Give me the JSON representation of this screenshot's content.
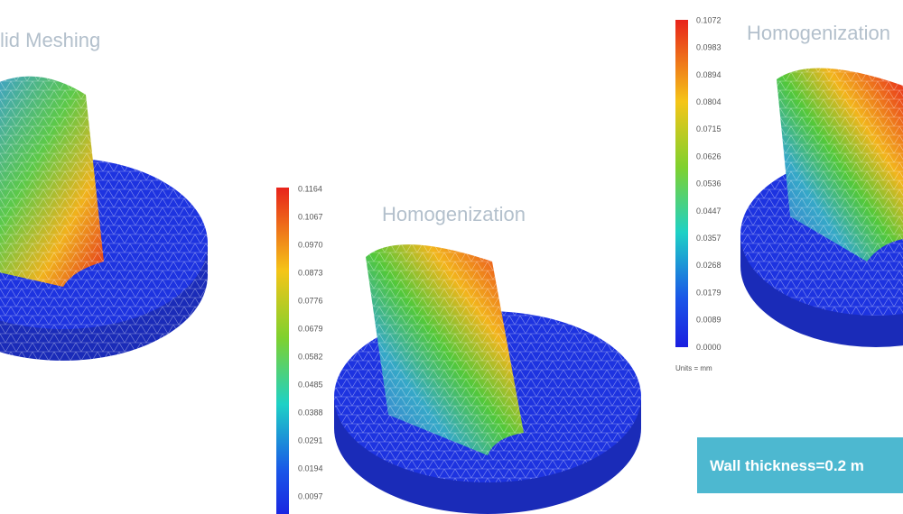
{
  "panels": [
    {
      "title": "lid Meshing"
    },
    {
      "title": "Homogenization",
      "colorbar": {
        "labels": [
          "0.1164",
          "0.1067",
          "0.0970",
          "0.0873",
          "0.0776",
          "0.0679",
          "0.0582",
          "0.0485",
          "0.0388",
          "0.0291",
          "0.0194",
          "0.0097"
        ]
      }
    },
    {
      "title": "Homogenization",
      "colorbar": {
        "labels": [
          "0.1072",
          "0.0983",
          "0.0894",
          "0.0804",
          "0.0715",
          "0.0626",
          "0.0536",
          "0.0447",
          "0.0357",
          "0.0268",
          "0.0179",
          "0.0089",
          "0.0000"
        ],
        "units": "Units = mm"
      }
    }
  ],
  "note": "Wall thickness=0.2 m"
}
